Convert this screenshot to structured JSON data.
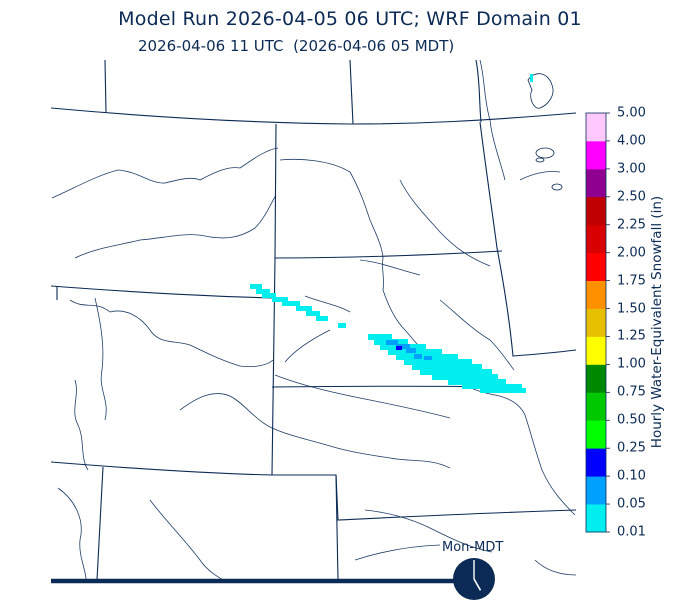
{
  "header": {
    "title": "Model Run 2026-04-05 06 UTC; WRF Domain 01",
    "valid_time": "2026-04-06 11 UTC  (2026-04-06 05 MDT)"
  },
  "legend": {
    "title": "Hourly Water-Equivalent Snowfall (in)",
    "levels": [
      {
        "label": "0.01",
        "color": "#00eeee"
      },
      {
        "label": "0.05",
        "color": "#00a0ff"
      },
      {
        "label": "0.10",
        "color": "#0000ff"
      },
      {
        "label": "0.25",
        "color": "#00ff00"
      },
      {
        "label": "0.50",
        "color": "#00c800"
      },
      {
        "label": "0.75",
        "color": "#008800"
      },
      {
        "label": "1.00",
        "color": "#ffff00"
      },
      {
        "label": "1.25",
        "color": "#e6c000"
      },
      {
        "label": "1.50",
        "color": "#ff9000"
      },
      {
        "label": "1.75",
        "color": "#ff0000"
      },
      {
        "label": "2.00",
        "color": "#d80000"
      },
      {
        "label": "2.25",
        "color": "#c00000"
      },
      {
        "label": "2.50",
        "color": "#900090"
      },
      {
        "label": "3.00",
        "color": "#ff00ff"
      },
      {
        "label": "4.00",
        "color": "#ffc8ff"
      },
      {
        "label": "5.00",
        "color": ""
      }
    ]
  },
  "timeline": {
    "label": "Mon-MDT",
    "clock_hour": 5
  },
  "colors": {
    "boundary": "#0b2a55",
    "river": "#1f3d66",
    "snow_light": "#00eeee",
    "snow_moderate": "#00a0ff",
    "snow_heavy": "#0000ff"
  }
}
